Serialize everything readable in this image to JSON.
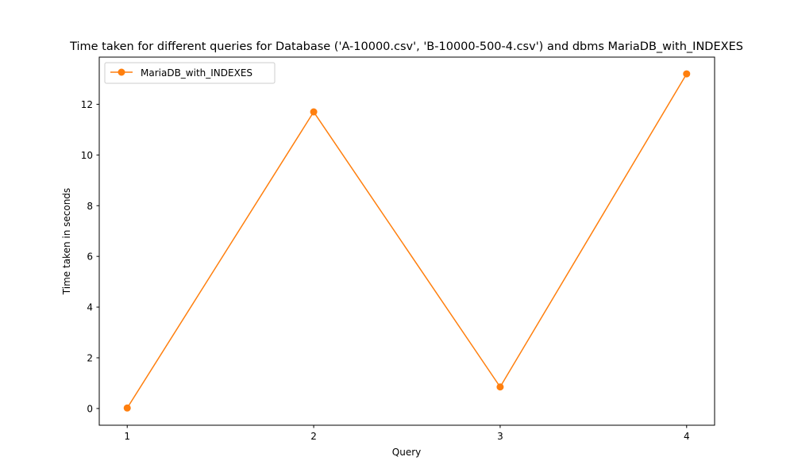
{
  "chart_data": {
    "type": "line",
    "title": "Time taken for different queries for Database ('A-10000.csv', 'B-10000-500-4.csv') and dbms MariaDB_with_INDEXES",
    "xlabel": "Query",
    "ylabel": "Time taken in seconds",
    "x": [
      1,
      2,
      3,
      4
    ],
    "xticks": [
      "1",
      "2",
      "3",
      "4"
    ],
    "yticks": [
      "0",
      "2",
      "4",
      "6",
      "8",
      "10",
      "12"
    ],
    "xlim": [
      0.85,
      4.15
    ],
    "ylim": [
      -0.66,
      13.86
    ],
    "grid": false,
    "legend_position": "upper-left",
    "series": [
      {
        "name": "MariaDB_with_INDEXES",
        "color": "#ff7f0e",
        "marker": "circle",
        "values": [
          0.02,
          11.7,
          0.85,
          13.2
        ]
      }
    ]
  }
}
